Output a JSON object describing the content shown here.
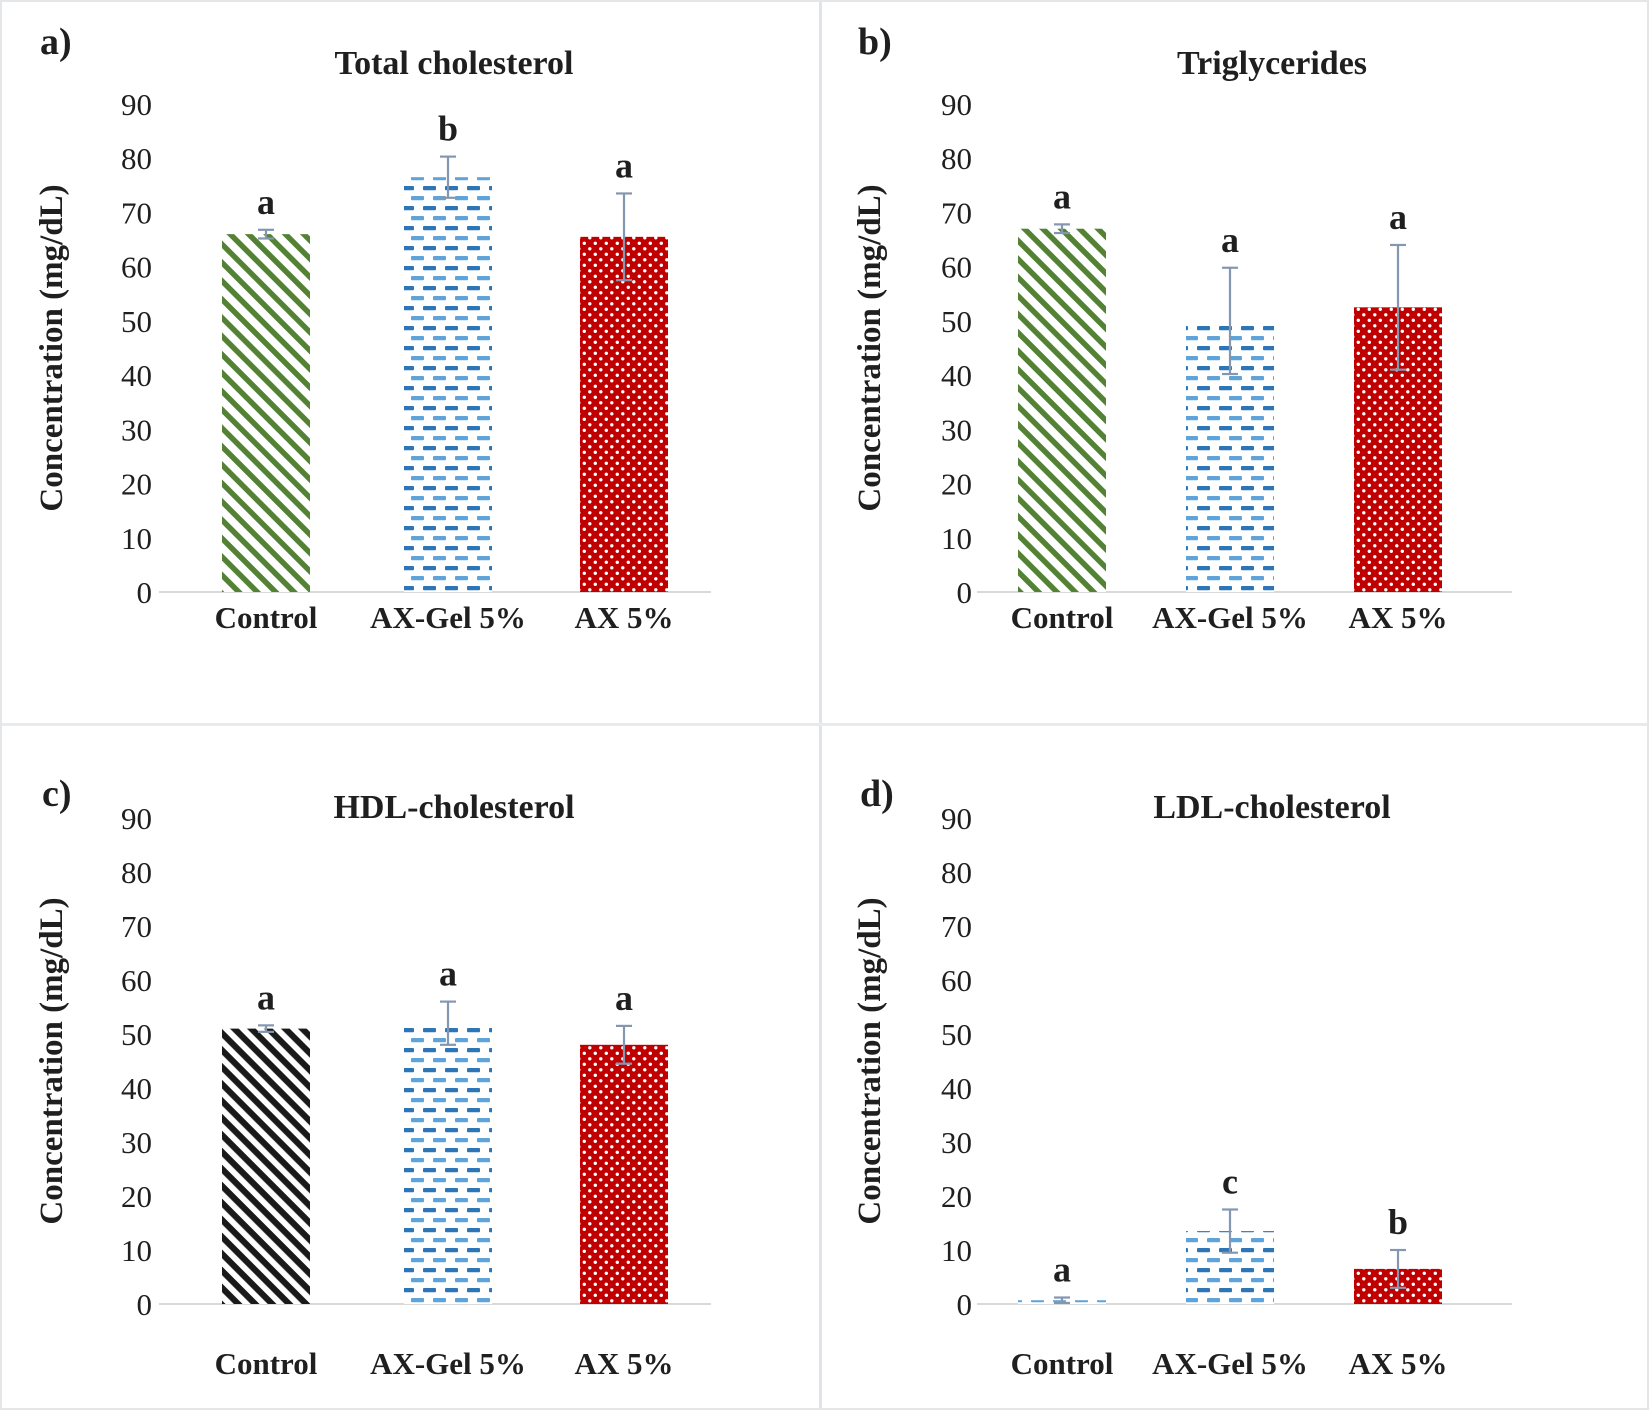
{
  "figure": {
    "description": "Four-panel bar chart of serum lipid concentrations",
    "divider_color": "#e4e7ea",
    "background": "#ffffff"
  },
  "styles": {
    "green": "#548235",
    "black": "#1a1a1a",
    "blue_dark": "#2e75b6",
    "blue_light": "#5fa3d9",
    "red": "#c00000",
    "dot_white": "#ffffff",
    "error_bar_color": "#8497b0",
    "axis_line_color": "#d9d9d9",
    "text_color": "#1f1f1f"
  },
  "chart_data": [
    {
      "panel_label": "a)",
      "type": "bar",
      "title": "Total cholesterol",
      "ylabel": "Concentration (mg/dL)",
      "ylim": [
        0,
        90
      ],
      "yticks": [
        0,
        10,
        20,
        30,
        40,
        50,
        60,
        70,
        80,
        90
      ],
      "grid": false,
      "legend": "none",
      "categories": [
        "Control",
        "AX-Gel 5%",
        "AX 5%"
      ],
      "values": [
        66,
        76.5,
        65.5
      ],
      "errors": [
        0.8,
        3.8,
        8
      ],
      "sig_letters": [
        "a",
        "b",
        "a"
      ],
      "bar_patterns": [
        "green-diagonal",
        "blue-dash",
        "red-dot"
      ]
    },
    {
      "panel_label": "b)",
      "type": "bar",
      "title": "Triglycerides",
      "ylabel": "Concentration (mg/dL)",
      "ylim": [
        0,
        90
      ],
      "yticks": [
        0,
        10,
        20,
        30,
        40,
        50,
        60,
        70,
        80,
        90
      ],
      "grid": false,
      "legend": "none",
      "categories": [
        "Control",
        "AX-Gel 5%",
        "AX 5%"
      ],
      "values": [
        67,
        50,
        52.5
      ],
      "errors": [
        0.8,
        9.8,
        11.5
      ],
      "sig_letters": [
        "a",
        "a",
        "a"
      ],
      "bar_patterns": [
        "green-diagonal",
        "blue-dash",
        "red-dot"
      ]
    },
    {
      "panel_label": "c)",
      "type": "bar",
      "title": "HDL-cholesterol",
      "ylabel": "Concentration (mg/dL)",
      "ylim": [
        0,
        90
      ],
      "yticks": [
        0,
        10,
        20,
        30,
        40,
        50,
        60,
        70,
        80,
        90
      ],
      "grid": false,
      "legend": "none",
      "categories": [
        "Control",
        "AX-Gel 5%",
        "AX 5%"
      ],
      "values": [
        51,
        52,
        48
      ],
      "errors": [
        0.6,
        4,
        3.5
      ],
      "sig_letters": [
        "a",
        "a",
        "a"
      ],
      "bar_patterns": [
        "black-diagonal",
        "blue-dash",
        "red-dot"
      ]
    },
    {
      "panel_label": "d)",
      "type": "bar",
      "title": "LDL-cholesterol",
      "ylabel": "Concentration (mg/dL)",
      "ylim": [
        0,
        90
      ],
      "yticks": [
        0,
        10,
        20,
        30,
        40,
        50,
        60,
        70,
        80,
        90
      ],
      "grid": false,
      "legend": "none",
      "categories": [
        "Control",
        "AX-Gel 5%",
        "AX 5%"
      ],
      "values": [
        0.7,
        13.5,
        6.5
      ],
      "errors": [
        0.5,
        4,
        3.5
      ],
      "sig_letters": [
        "a",
        "c",
        "b"
      ],
      "bar_patterns": [
        "blue-dash",
        "blue-dash",
        "red-dot"
      ]
    }
  ]
}
